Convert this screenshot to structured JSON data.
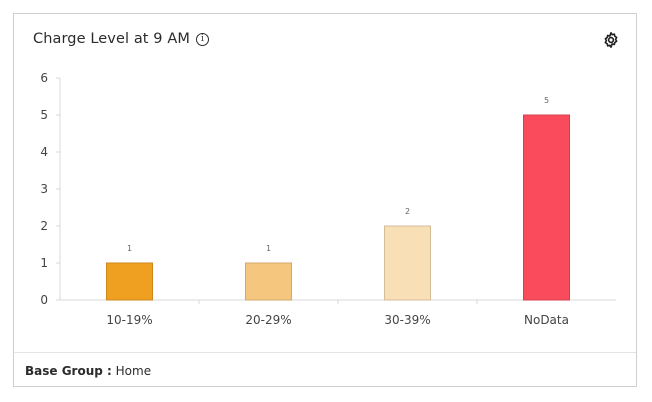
{
  "card": {
    "title": "Charge Level at 9 AM",
    "info_glyph": "i",
    "settings_icon": "gear-icon"
  },
  "footer": {
    "label": "Base Group :",
    "value": "Home"
  },
  "colors": {
    "bar_10_19": "#f0a020",
    "bar_20_29": "#f5c77e",
    "bar_30_39": "#f8dfb6",
    "bar_nodata": "#f94b5c"
  },
  "chart_data": {
    "type": "bar",
    "categories": [
      "10-19%",
      "20-29%",
      "30-39%",
      "NoData"
    ],
    "values": [
      1,
      1,
      2,
      5
    ],
    "data_labels": [
      "1",
      "1",
      "2",
      "5"
    ],
    "ylim": [
      0,
      6
    ],
    "yticks": [
      "0",
      "1",
      "2",
      "3",
      "4",
      "5",
      "6"
    ],
    "colors": [
      "#f0a020",
      "#f5c77e",
      "#f8dfb6",
      "#f94b5c"
    ],
    "grid": false
  }
}
